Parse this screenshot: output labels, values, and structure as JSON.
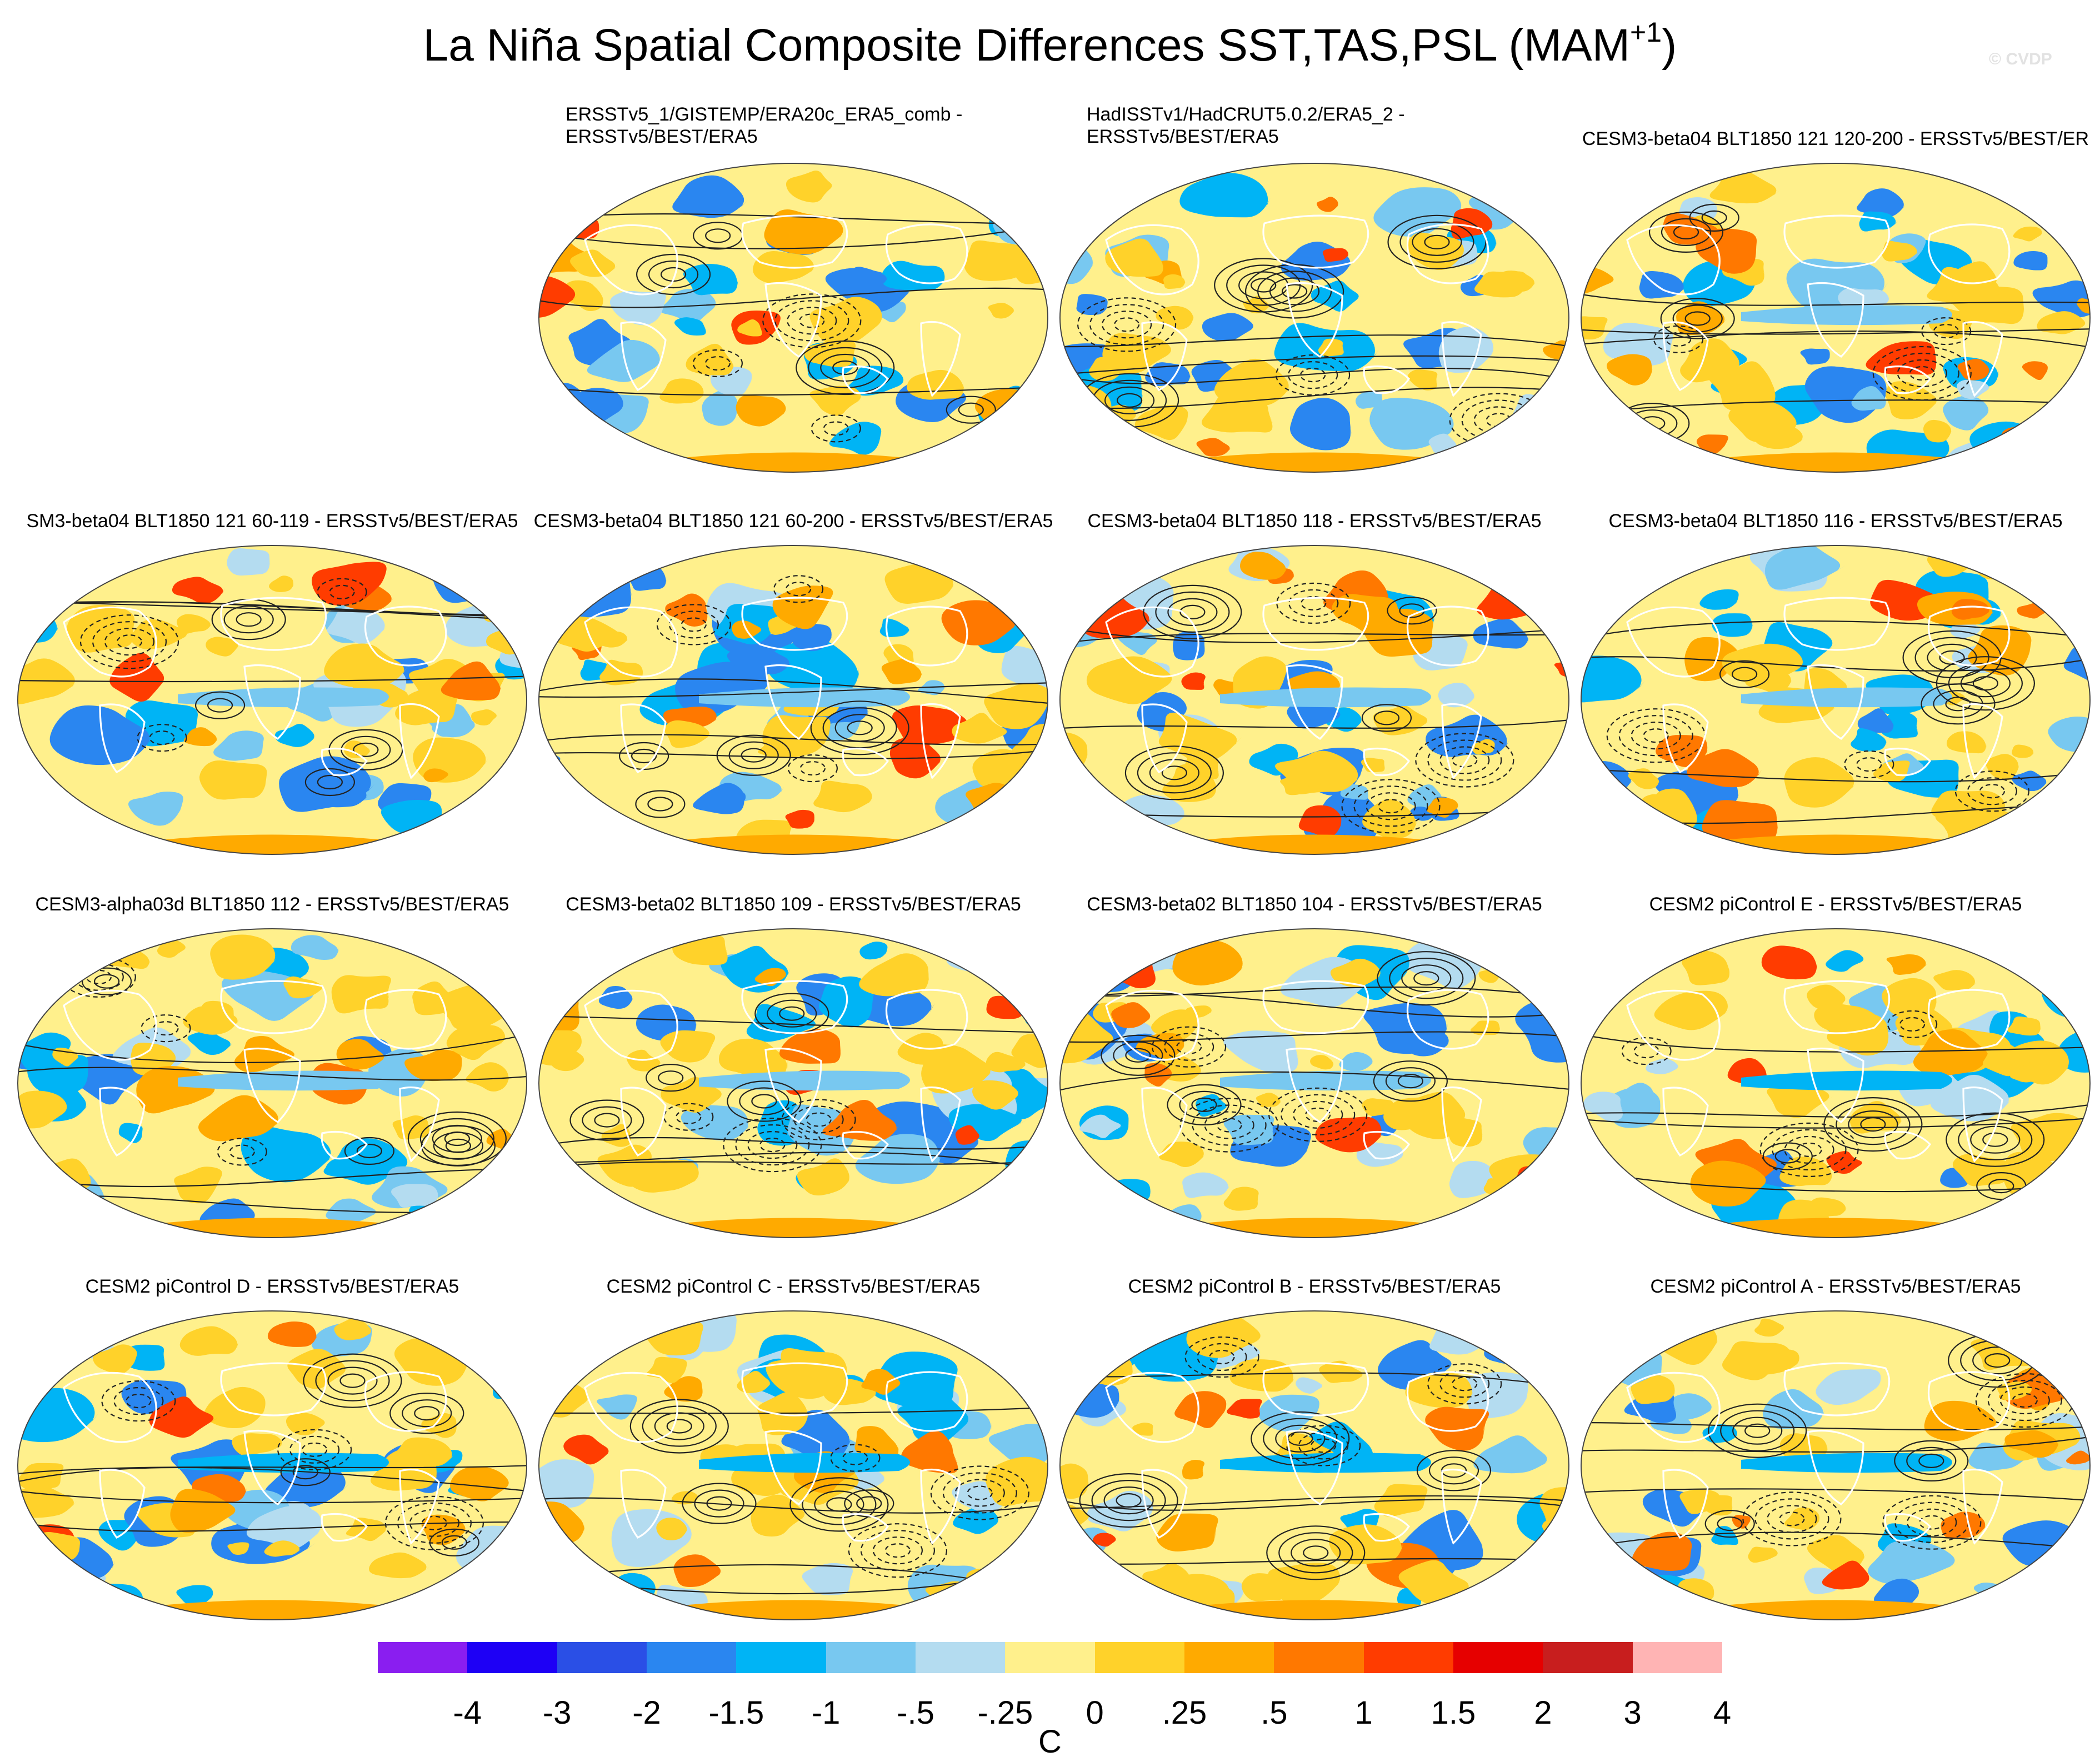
{
  "figure": {
    "title": "La Niña Spatial Composite Differences SST,TAS,PSL (MAM",
    "title_superscript": "+1",
    "title_close": ")",
    "watermark": "© CVDP"
  },
  "panels": [
    {
      "lines": [
        "ERSSTv5_1/GISTEMP/ERA20c_ERA5_comb -",
        "ERSSTv5/BEST/ERA5"
      ],
      "warm": 0.3,
      "seed": 11
    },
    {
      "lines": [
        "HadISSTv1/HadCRUT5.0.2/ERA5_2 -",
        "ERSSTv5/BEST/ERA5"
      ],
      "warm": 0.35,
      "seed": 23
    },
    {
      "lines": [
        "CESM3-beta04 BLT1850 121 120-200 - ERSSTv5/BEST/ER"
      ],
      "warm": 0.55,
      "seed": 37
    },
    {
      "lines": [
        "SM3-beta04 BLT1850 121 60-119 - ERSSTv5/BEST/ERA5"
      ],
      "warm": 0.55,
      "seed": 41
    },
    {
      "lines": [
        "CESM3-beta04 BLT1850 121 60-200 - ERSSTv5/BEST/ERA5"
      ],
      "warm": 0.55,
      "seed": 53
    },
    {
      "lines": [
        "CESM3-beta04 BLT1850 118 - ERSSTv5/BEST/ERA5"
      ],
      "warm": 0.6,
      "seed": 67
    },
    {
      "lines": [
        "CESM3-beta04 BLT1850 116 - ERSSTv5/BEST/ERA5"
      ],
      "warm": 0.5,
      "seed": 71
    },
    {
      "lines": [
        "CESM3-alpha03d BLT1850 112 - ERSSTv5/BEST/ERA5"
      ],
      "warm": 0.5,
      "seed": 83
    },
    {
      "lines": [
        "CESM3-beta02 BLT1850 109 - ERSSTv5/BEST/ERA5"
      ],
      "warm": 0.5,
      "seed": 97
    },
    {
      "lines": [
        "CESM3-beta02 BLT1850 104 - ERSSTv5/BEST/ERA5"
      ],
      "warm": 0.5,
      "seed": 101
    },
    {
      "lines": [
        "CESM2 piControl E - ERSSTv5/BEST/ERA5"
      ],
      "warm": 0.5,
      "seed": 113
    },
    {
      "lines": [
        "CESM2 piControl D - ERSSTv5/BEST/ERA5"
      ],
      "warm": 0.5,
      "seed": 127
    },
    {
      "lines": [
        "CESM2 piControl C - ERSSTv5/BEST/ERA5"
      ],
      "warm": 0.5,
      "seed": 131
    },
    {
      "lines": [
        "CESM2 piControl B - ERSSTv5/BEST/ERA5"
      ],
      "warm": 0.5,
      "seed": 149
    },
    {
      "lines": [
        "CESM2 piControl A - ERSSTv5/BEST/ERA5"
      ],
      "warm": 0.5,
      "seed": 157
    }
  ],
  "colorbar": {
    "units": "C",
    "labels": [
      "-4",
      "-3",
      "-2",
      "-1.5",
      "-1",
      "-.5",
      "-.25",
      "0",
      ".25",
      ".5",
      "1",
      "1.5",
      "2",
      "3",
      "4"
    ],
    "colors": [
      "#8a1ef0",
      "#1e00f5",
      "#2a4fe6",
      "#2a86f0",
      "#00b4f5",
      "#78c8f0",
      "#b4dcf0",
      "#fff08c",
      "#ffd22a",
      "#ffaa00",
      "#ff7800",
      "#ff3c00",
      "#e60000",
      "#c81e1e",
      "#ffb4b4"
    ]
  }
}
